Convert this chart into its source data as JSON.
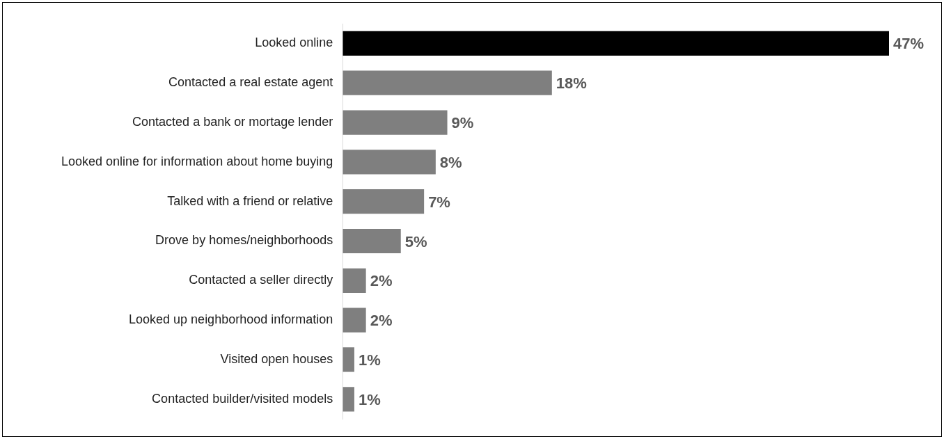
{
  "chart_data": {
    "type": "bar",
    "orientation": "horizontal",
    "categories": [
      "Looked online",
      "Contacted a real estate agent",
      "Contacted a bank or mortage lender",
      "Looked online for information about home buying",
      "Talked with a friend or relative",
      "Drove by homes/neighborhoods",
      "Contacted a seller directly",
      "Looked up neighborhood information",
      "Visited open houses",
      "Contacted builder/visited models"
    ],
    "values": [
      47,
      18,
      9,
      8,
      7,
      5,
      2,
      2,
      1,
      1
    ],
    "colors": [
      "#000000",
      "#7f7f7f",
      "#7f7f7f",
      "#7f7f7f",
      "#7f7f7f",
      "#7f7f7f",
      "#7f7f7f",
      "#7f7f7f",
      "#7f7f7f",
      "#7f7f7f"
    ],
    "value_labels": [
      "47%",
      "18%",
      "9%",
      "8%",
      "7%",
      "5%",
      "2%",
      "2%",
      "1%",
      "1%"
    ],
    "xlim": [
      0,
      47
    ],
    "legend": false
  }
}
